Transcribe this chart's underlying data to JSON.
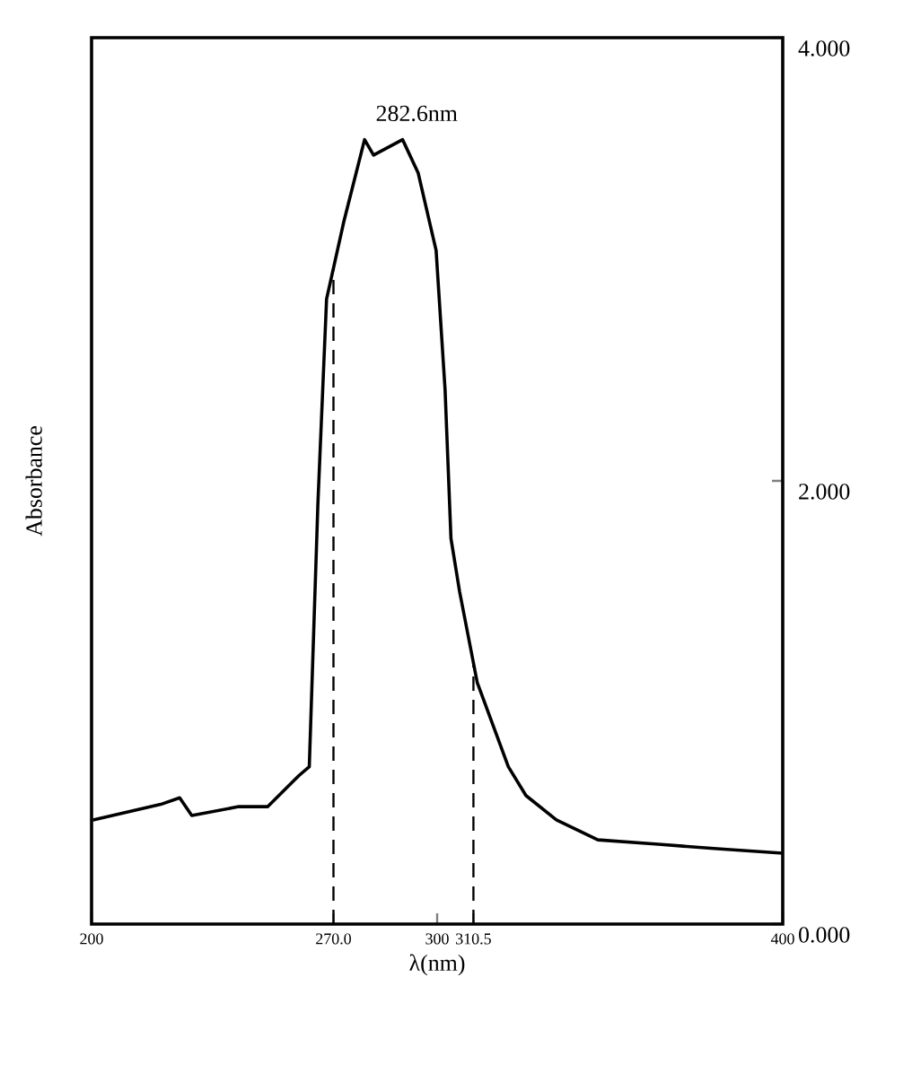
{
  "chart_data": {
    "type": "line",
    "xlabel": "λ(nm)",
    "ylabel": "Absorbance",
    "x": [
      200.4,
      220,
      225.5,
      229,
      242.6,
      251,
      260,
      263,
      265.5,
      268,
      273,
      279,
      281.6,
      290,
      294.5,
      299.7,
      302.3,
      304,
      306.5,
      311.6,
      320.6,
      325.7,
      334.5,
      346.5,
      364,
      381,
      400
    ],
    "values": [
      0.47,
      0.54,
      0.57,
      0.49,
      0.53,
      0.53,
      0.67,
      0.71,
      1.9,
      2.82,
      3.17,
      3.54,
      3.47,
      3.54,
      3.39,
      3.04,
      2.41,
      1.74,
      1.5,
      1.09,
      0.71,
      0.58,
      0.47,
      0.38,
      0.36,
      0.34,
      0.32
    ],
    "color": "#000000",
    "xlim": [
      200,
      400
    ],
    "ylim": [
      0,
      4
    ],
    "xticks": [
      200,
      {
        "value": 270,
        "label": "270.0"
      },
      300,
      {
        "value": 310.5,
        "label": "310.5"
      },
      400
    ],
    "yticks": [
      {
        "value": 0,
        "label": "0.000"
      },
      {
        "value": 2,
        "label": "2.000"
      },
      {
        "value": 4,
        "label": "4.000"
      }
    ],
    "ref_lines": [
      {
        "axis": "x",
        "value": 270,
        "line_style": "dashed"
      },
      {
        "axis": "x",
        "value": 310.5,
        "line_style": "dashed"
      }
    ],
    "annotations": [
      "282.6nm"
    ],
    "grid": false,
    "marker": "none",
    "line_style": "solid"
  }
}
